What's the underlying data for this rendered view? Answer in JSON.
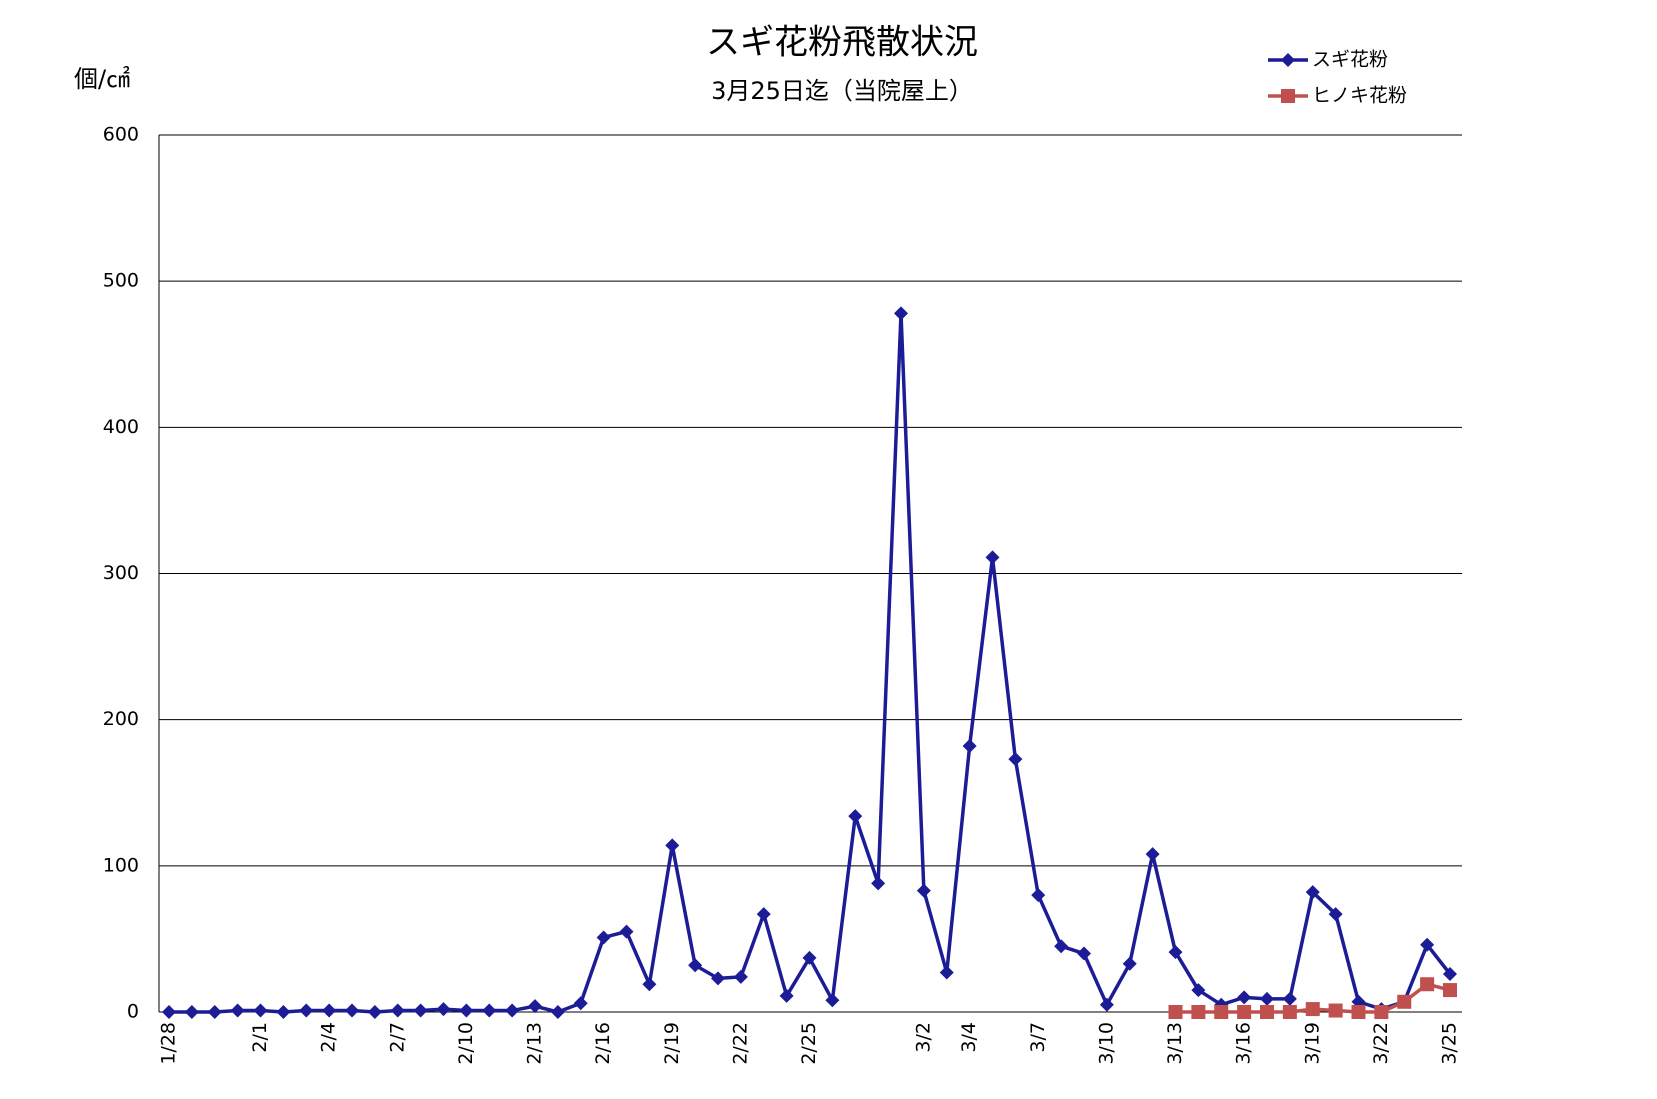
{
  "chart_data": {
    "type": "line",
    "title": "スギ花粉飛散状況",
    "subtitle": "3月25日迄（当院屋上）",
    "y_label": "個/㎠",
    "categories": [
      "1/28",
      null,
      null,
      null,
      "2/1",
      null,
      null,
      "2/4",
      null,
      null,
      "2/7",
      null,
      null,
      "2/10",
      null,
      null,
      "2/13",
      null,
      null,
      "2/16",
      null,
      null,
      "2/19",
      null,
      null,
      "2/22",
      null,
      null,
      "2/25",
      null,
      null,
      null,
      null,
      "3/2",
      null,
      "3/4",
      null,
      null,
      "3/7",
      null,
      null,
      "3/10",
      null,
      null,
      "3/13",
      null,
      null,
      "3/16",
      null,
      null,
      "3/19",
      null,
      null,
      "3/22",
      null,
      null,
      "3/25"
    ],
    "series": [
      {
        "name": "スギ花粉",
        "color": "#1c1c96",
        "marker": "diamond",
        "values": [
          0,
          0,
          0,
          1,
          1,
          0,
          1,
          1,
          1,
          0,
          1,
          1,
          2,
          1,
          1,
          1,
          4,
          0,
          6,
          51,
          55,
          19,
          114,
          32,
          23,
          24,
          67,
          11,
          37,
          8,
          134,
          88,
          478,
          83,
          27,
          182,
          311,
          173,
          80,
          45,
          40,
          5,
          33,
          108,
          41,
          15,
          5,
          10,
          9,
          9,
          82,
          67,
          7,
          2,
          7,
          46,
          26
        ]
      },
      {
        "name": "ヒノキ花粉",
        "color": "#c0504d",
        "marker": "square",
        "values": [
          null,
          null,
          null,
          null,
          null,
          null,
          null,
          null,
          null,
          null,
          null,
          null,
          null,
          null,
          null,
          null,
          null,
          null,
          null,
          null,
          null,
          null,
          null,
          null,
          null,
          null,
          null,
          null,
          null,
          null,
          null,
          null,
          null,
          null,
          null,
          null,
          null,
          null,
          null,
          null,
          null,
          null,
          null,
          null,
          0,
          0,
          0,
          0,
          0,
          0,
          2,
          1,
          0,
          0,
          7,
          19,
          15
        ]
      }
    ],
    "ylim": [
      0,
      600
    ],
    "yticks": [
      0,
      100,
      200,
      300,
      400,
      500,
      600
    ],
    "grid": true,
    "legend": "top-right"
  }
}
